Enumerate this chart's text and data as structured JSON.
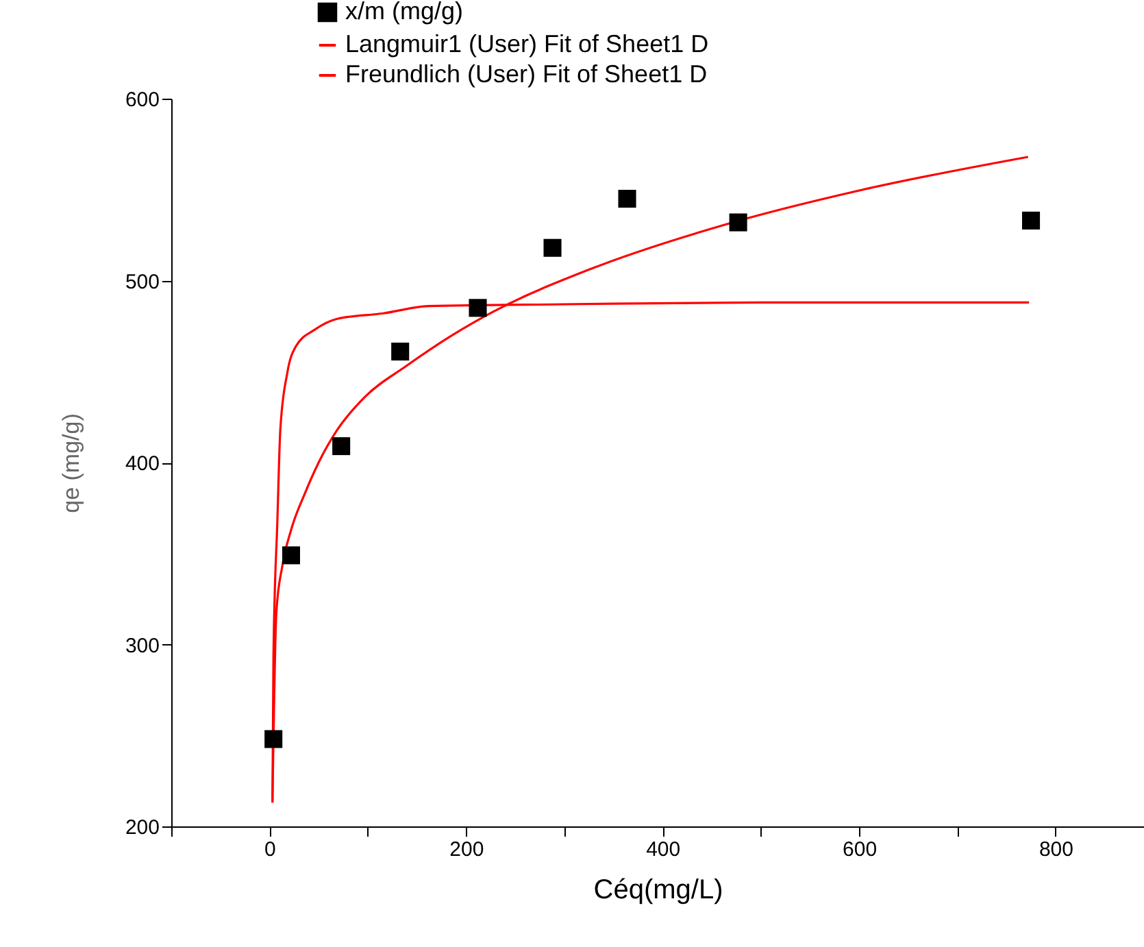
{
  "chart_data": {
    "type": "scatter",
    "xlabel": "Céq(mg/L)",
    "ylabel": "qe (mg/g)",
    "xlim": [
      -100,
      890
    ],
    "ylim": [
      200,
      600
    ],
    "xticks": [
      {
        "value": -100,
        "label": null
      },
      0,
      {
        "value": 100,
        "label": null
      },
      200,
      {
        "value": 300,
        "label": null
      },
      400,
      {
        "value": 500,
        "label": null
      },
      600,
      {
        "value": 700,
        "label": null
      },
      800
    ],
    "yticks": [
      200,
      300,
      400,
      500,
      600
    ],
    "grid": false,
    "legend": "top",
    "series": [
      {
        "name": "x/m (mg/g)",
        "marker": "square",
        "color": "#000000",
        "x": [
          4,
          22,
          73,
          133,
          212,
          288,
          364,
          477,
          775
        ],
        "values": [
          248,
          349,
          409,
          461,
          485,
          518,
          545,
          532,
          533
        ]
      },
      {
        "name": "Langmuir1 (User) Fit of Sheet1 D",
        "type": "line",
        "color": "#ff0000",
        "x": [
          3,
          4,
          8,
          11,
          18,
          27,
          46,
          69,
          116,
          162,
          300,
          500,
          773
        ],
        "values": [
          213,
          293,
          368,
          418,
          449,
          464,
          473,
          479,
          482,
          486,
          487,
          488,
          488
        ]
      },
      {
        "name": "Freundlich (User) Fit of Sheet1 D",
        "type": "line",
        "color": "#ff0000",
        "x": [
          3,
          7,
          13,
          22,
          36,
          50,
          69,
          97,
          139,
          186,
          228,
          325,
          465,
          604,
          772
        ],
        "values": [
          214,
          318,
          343,
          363,
          383,
          400,
          418,
          436,
          453,
          470,
          483,
          506,
          531,
          550,
          568
        ]
      }
    ]
  }
}
